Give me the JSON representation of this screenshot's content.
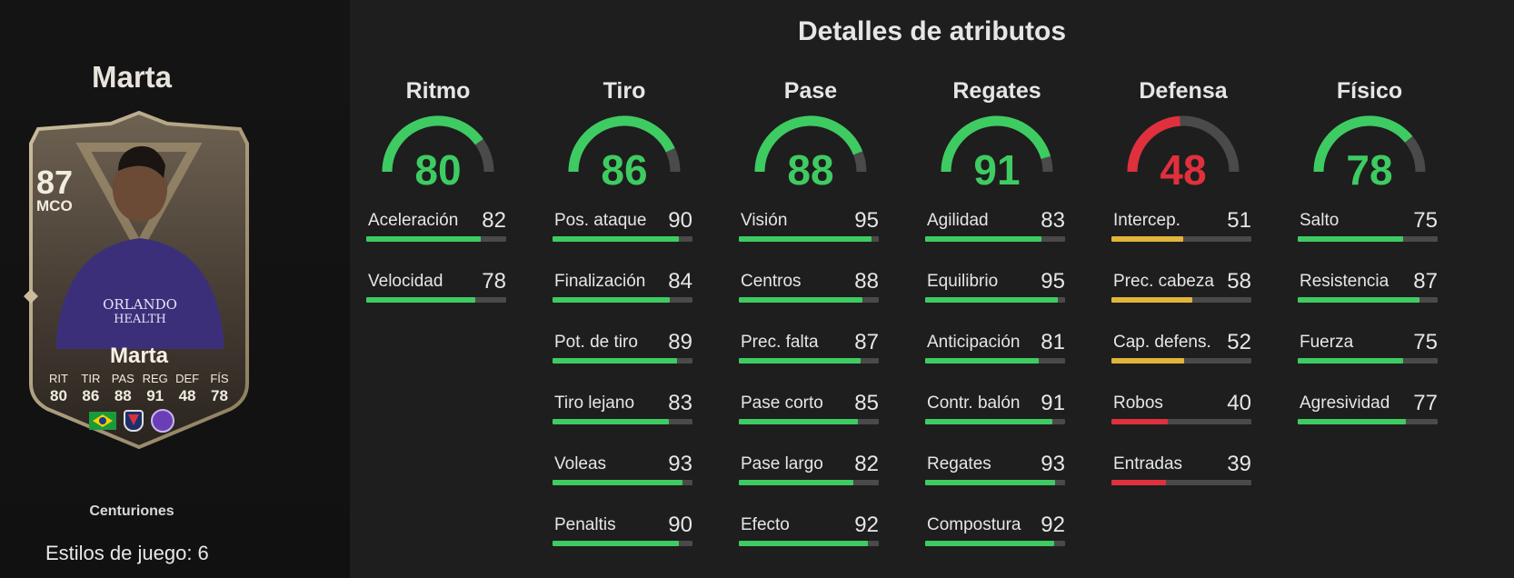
{
  "colors": {
    "green": "#3ecb62",
    "yellow": "#e2b43a",
    "red": "#e0303d",
    "track": "#4a4a4a"
  },
  "player": {
    "name_title": "Marta",
    "card": {
      "rating": "87",
      "position": "MCO",
      "name": "Marta",
      "stats": [
        {
          "label": "RIT",
          "value": "80"
        },
        {
          "label": "TIR",
          "value": "86"
        },
        {
          "label": "PAS",
          "value": "88"
        },
        {
          "label": "REG",
          "value": "91"
        },
        {
          "label": "DEF",
          "value": "48"
        },
        {
          "label": "FÍS",
          "value": "78"
        }
      ],
      "badges": [
        "brazil-flag-icon",
        "league-badge-icon",
        "club-badge-icon"
      ]
    },
    "version": "Centuriones",
    "playstyles": "Estilos de juego: 6"
  },
  "details": {
    "title": "Detalles de atributos",
    "categories": [
      {
        "name": "Ritmo",
        "value": 80,
        "attributes": [
          {
            "name": "Aceleración",
            "value": 82
          },
          {
            "name": "Velocidad",
            "value": 78
          }
        ]
      },
      {
        "name": "Tiro",
        "value": 86,
        "attributes": [
          {
            "name": "Pos. ataque",
            "value": 90
          },
          {
            "name": "Finalización",
            "value": 84
          },
          {
            "name": "Pot. de tiro",
            "value": 89
          },
          {
            "name": "Tiro lejano",
            "value": 83
          },
          {
            "name": "Voleas",
            "value": 93
          },
          {
            "name": "Penaltis",
            "value": 90
          }
        ]
      },
      {
        "name": "Pase",
        "value": 88,
        "attributes": [
          {
            "name": "Visión",
            "value": 95
          },
          {
            "name": "Centros",
            "value": 88
          },
          {
            "name": "Prec. falta",
            "value": 87
          },
          {
            "name": "Pase corto",
            "value": 85
          },
          {
            "name": "Pase largo",
            "value": 82
          },
          {
            "name": "Efecto",
            "value": 92
          }
        ]
      },
      {
        "name": "Regates",
        "value": 91,
        "attributes": [
          {
            "name": "Agilidad",
            "value": 83
          },
          {
            "name": "Equilibrio",
            "value": 95
          },
          {
            "name": "Anticipación",
            "value": 81
          },
          {
            "name": "Contr. balón",
            "value": 91
          },
          {
            "name": "Regates",
            "value": 93
          },
          {
            "name": "Compostura",
            "value": 92
          }
        ]
      },
      {
        "name": "Defensa",
        "value": 48,
        "attributes": [
          {
            "name": "Intercep.",
            "value": 51
          },
          {
            "name": "Prec. cabeza",
            "value": 58
          },
          {
            "name": "Cap. defens.",
            "value": 52
          },
          {
            "name": "Robos",
            "value": 40
          },
          {
            "name": "Entradas",
            "value": 39
          }
        ]
      },
      {
        "name": "Físico",
        "value": 78,
        "attributes": [
          {
            "name": "Salto",
            "value": 75
          },
          {
            "name": "Resistencia",
            "value": 87
          },
          {
            "name": "Fuerza",
            "value": 75
          },
          {
            "name": "Agresividad",
            "value": 77
          }
        ]
      }
    ]
  }
}
